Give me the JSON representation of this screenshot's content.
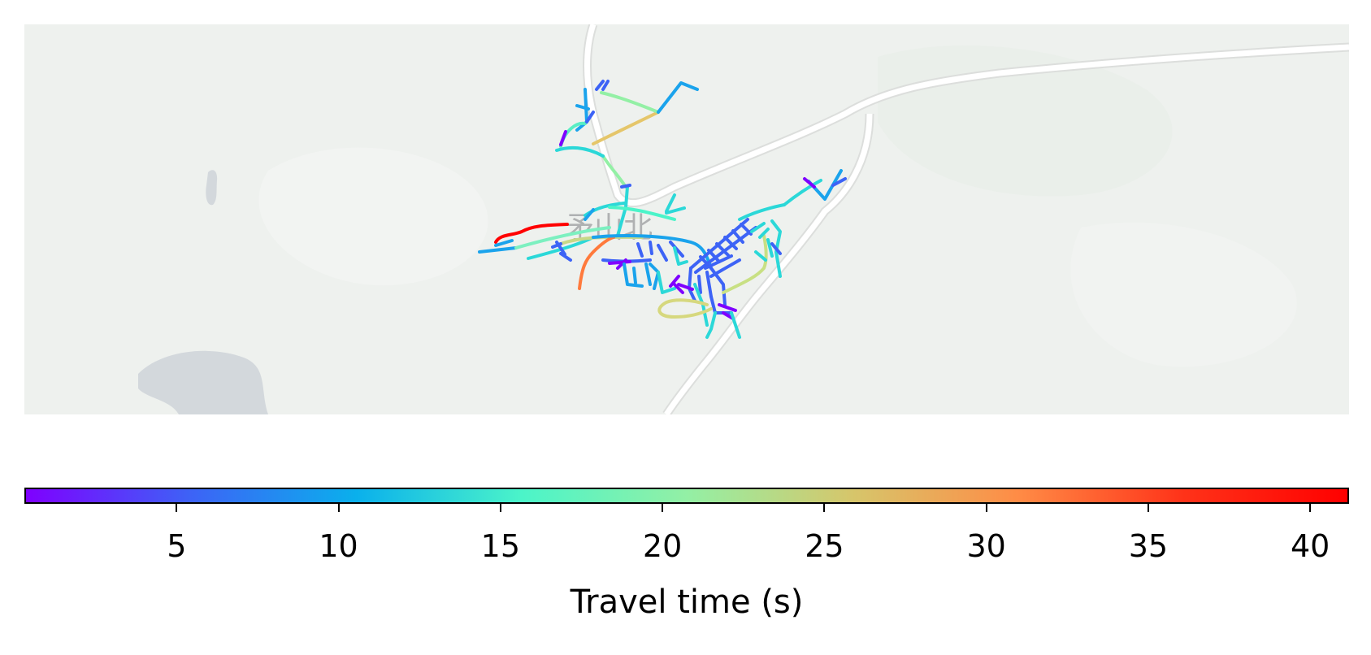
{
  "map": {
    "basemap_colors": {
      "land": "#eef1ee",
      "land_light": "#f3f5f3",
      "road": "#ffffff",
      "road_casing": "#dcdedc",
      "water": "#d3d8dc",
      "label": "#9a9c9e"
    },
    "place_label": "矛山北"
  },
  "colorbar": {
    "label": "Travel time (s)",
    "min": 0.3,
    "max": 41.2,
    "ticks": [
      5,
      10,
      15,
      20,
      25,
      30,
      35,
      40
    ],
    "colormap": "rainbow",
    "colormap_stops": [
      "#7f00ff",
      "#3d63f6",
      "#0ab0ec",
      "#4bf4c9",
      "#93f0a5",
      "#d6c66b",
      "#ff8c46",
      "#ff3319",
      "#ff0000"
    ]
  }
}
